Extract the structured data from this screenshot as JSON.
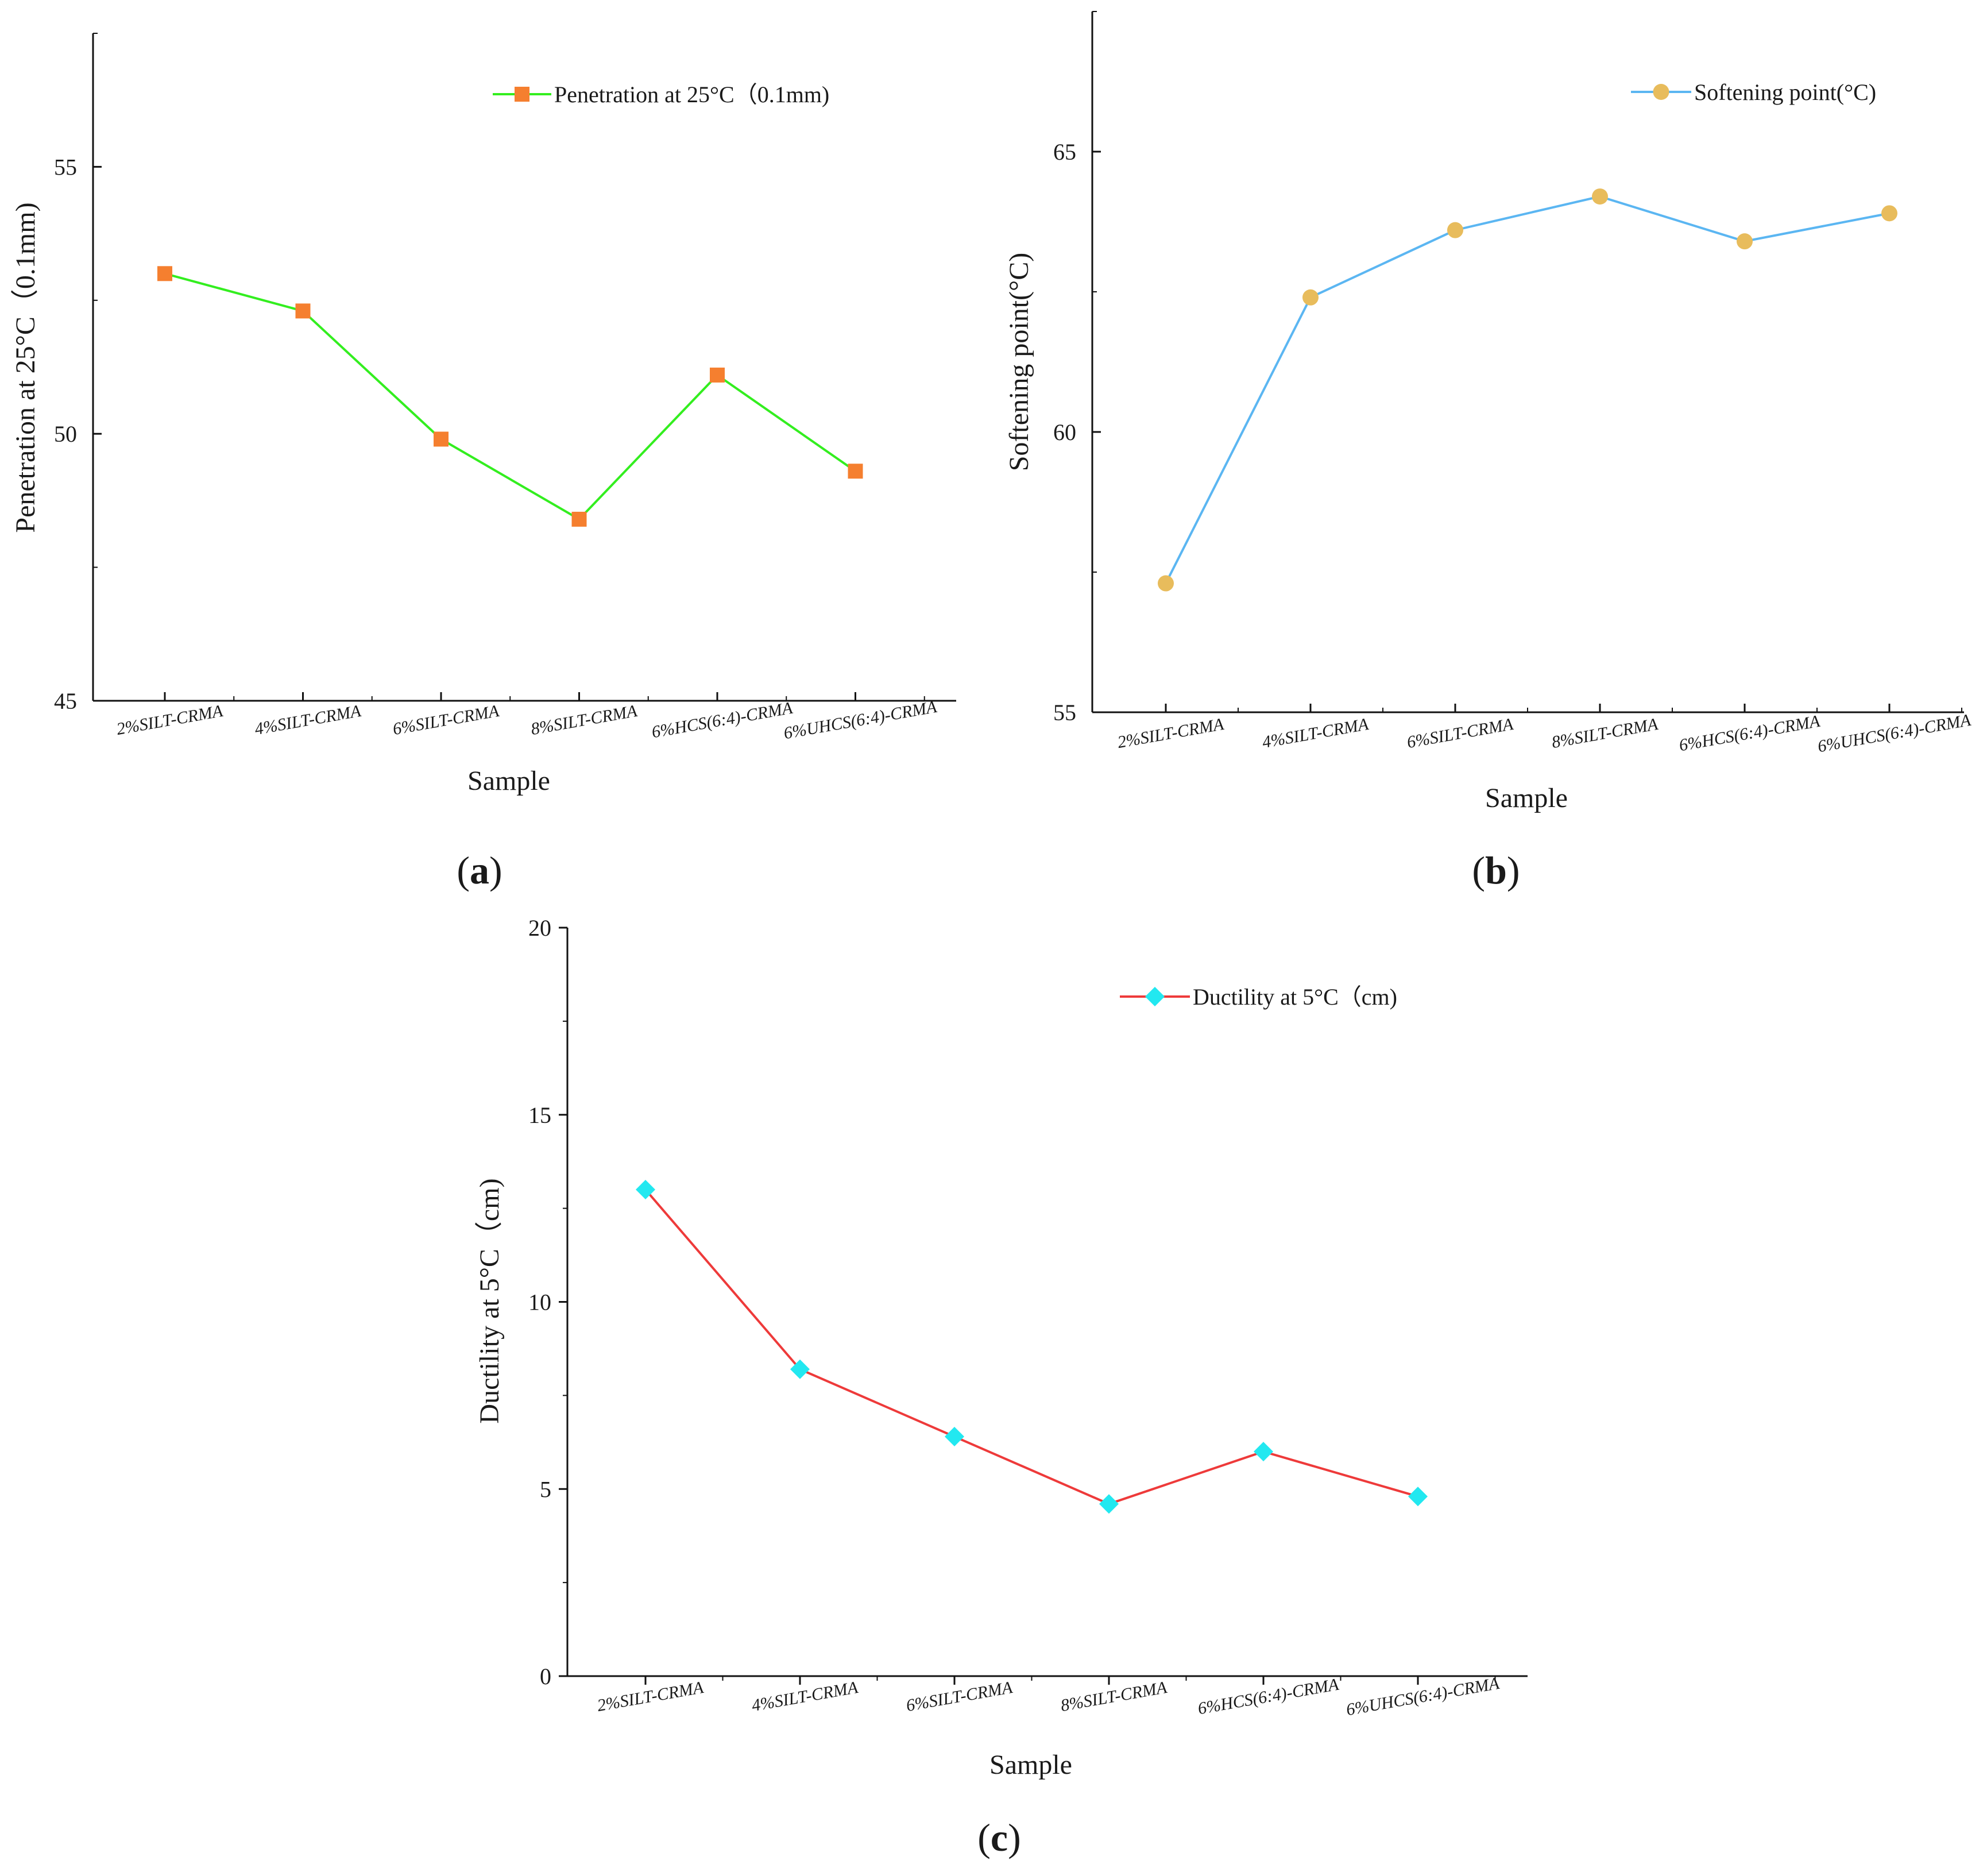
{
  "chart_data": [
    {
      "type": "line",
      "panel_label": "a",
      "categories": [
        "2%SILT-CRMA",
        "4%SILT-CRMA",
        "6%SILT-CRMA",
        "8%SILT-CRMA",
        "6%HCS(6:4)-CRMA",
        "6%UHCS(6:4)-CRMA"
      ],
      "series": [
        {
          "name": "Penetration at 25°C（0.1mm)",
          "values": [
            53.0,
            52.3,
            49.9,
            48.4,
            51.1,
            49.3
          ],
          "line_color": "#33ee1f",
          "marker": "square",
          "marker_color": "#f57f2f"
        }
      ],
      "xlabel": "Sample",
      "ylabel": "Penetration at 25°C（0.1mm)",
      "ylim": [
        45,
        57.5
      ],
      "yticks": [
        45,
        50,
        55
      ],
      "legend_position": "top-right"
    },
    {
      "type": "line",
      "panel_label": "b",
      "categories": [
        "2%SILT-CRMA",
        "4%SILT-CRMA",
        "6%SILT-CRMA",
        "8%SILT-CRMA",
        "6%HCS(6:4)-CRMA",
        "6%UHCS(6:4)-CRMA"
      ],
      "series": [
        {
          "name": "Softening point(°C)",
          "values": [
            57.3,
            62.4,
            63.6,
            64.2,
            63.4,
            63.9
          ],
          "line_color": "#5bb6f2",
          "marker": "circle",
          "marker_color": "#e8bc5c"
        }
      ],
      "xlabel": "Sample",
      "ylabel": "Softening point(°C)",
      "ylim": [
        55,
        67.5
      ],
      "yticks": [
        55,
        60,
        65
      ],
      "legend_position": "top-right"
    },
    {
      "type": "line",
      "panel_label": "c",
      "categories": [
        "2%SILT-CRMA",
        "4%SILT-CRMA",
        "6%SILT-CRMA",
        "8%SILT-CRMA",
        "6%HCS(6:4)-CRMA",
        "6%UHCS(6:4)-CRMA"
      ],
      "series": [
        {
          "name": "Ductility at 5°C（cm)",
          "values": [
            13.0,
            8.2,
            6.4,
            4.6,
            6.0,
            4.8
          ],
          "line_color": "#ee3a3a",
          "marker": "diamond",
          "marker_color": "#22e8f0"
        }
      ],
      "xlabel": "Sample",
      "ylabel": "Ductility at 5°C（cm)",
      "ylim": [
        0,
        20
      ],
      "yticks": [
        0,
        5,
        10,
        15,
        20
      ],
      "legend_position": "top-right"
    }
  ],
  "panel_labels": [
    {
      "open": "(",
      "letter": "a",
      "close": ")"
    },
    {
      "open": "(",
      "letter": "b",
      "close": ")"
    },
    {
      "open": "(",
      "letter": "c",
      "close": ")"
    }
  ]
}
